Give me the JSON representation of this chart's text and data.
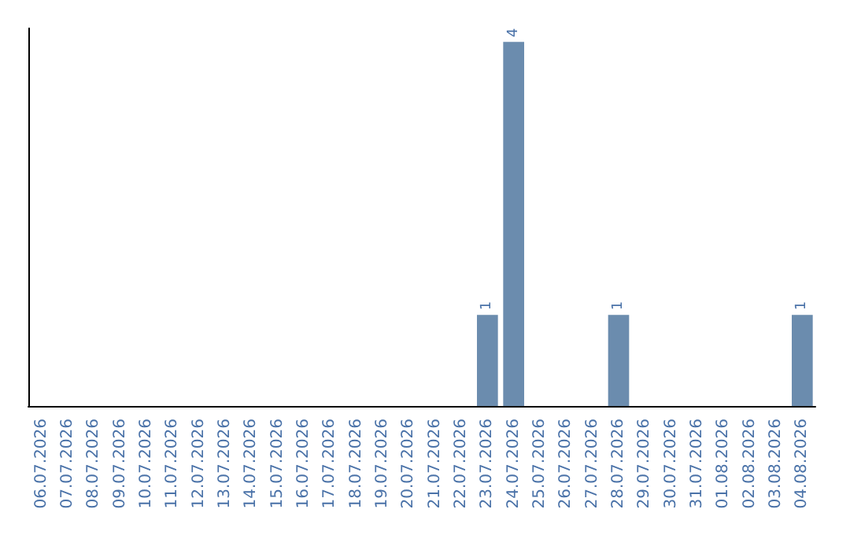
{
  "chart_data": {
    "type": "bar",
    "categories": [
      "06.07.2026",
      "07.07.2026",
      "08.07.2026",
      "09.07.2026",
      "10.07.2026",
      "11.07.2026",
      "12.07.2026",
      "13.07.2026",
      "14.07.2026",
      "15.07.2026",
      "16.07.2026",
      "17.07.2026",
      "18.07.2026",
      "19.07.2026",
      "20.07.2026",
      "21.07.2026",
      "22.07.2026",
      "23.07.2026",
      "24.07.2026",
      "25.07.2026",
      "26.07.2026",
      "27.07.2026",
      "28.07.2026",
      "29.07.2026",
      "30.07.2026",
      "31.07.2026",
      "01.08.2026",
      "02.08.2026",
      "03.08.2026",
      "04.08.2026"
    ],
    "values": [
      null,
      null,
      null,
      null,
      null,
      null,
      null,
      null,
      null,
      null,
      null,
      null,
      null,
      null,
      null,
      null,
      null,
      1,
      4,
      null,
      null,
      null,
      1,
      null,
      null,
      null,
      null,
      null,
      null,
      1
    ],
    "color": "#6b8cae",
    "ylim": [
      0,
      4.15
    ],
    "data_labels": true,
    "tick_labels": "x"
  }
}
